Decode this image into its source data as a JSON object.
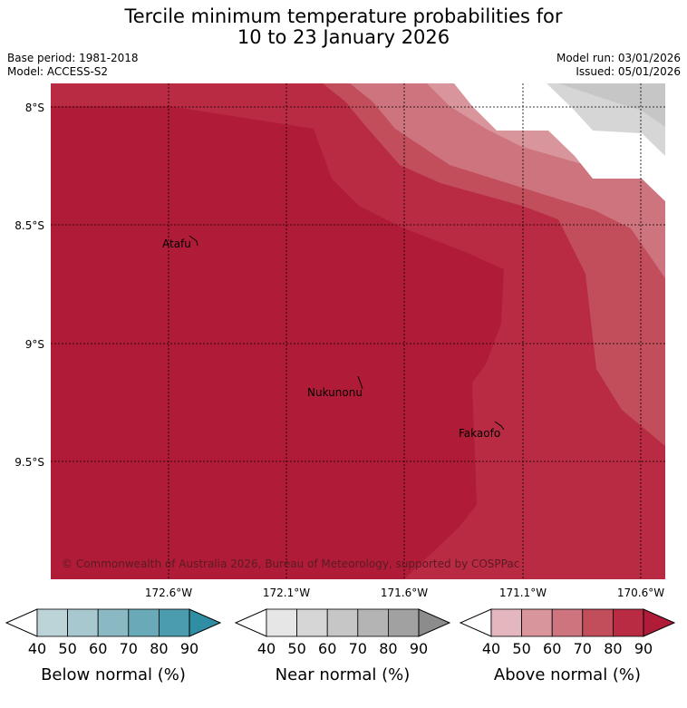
{
  "title": {
    "line1": "Tercile minimum temperature probabilities for",
    "line2": "10 to 23 January 2026"
  },
  "meta": {
    "base_period": "Base period: 1981-2018",
    "model": "Model: ACCESS-S2",
    "model_run": "Model run: 03/01/2026",
    "issued": "Issued: 05/01/2026"
  },
  "map": {
    "lat_labels": [
      "8°S",
      "8.5°S",
      "9°S",
      "9.5°S"
    ],
    "lon_labels": [
      "172.6°W",
      "172.1°W",
      "171.6°W",
      "171.1°W",
      "170.6°W"
    ],
    "places": [
      {
        "name": "Atafu"
      },
      {
        "name": "Nukunonu"
      },
      {
        "name": "Fakaofo"
      }
    ],
    "copyright": "© Commonwealth of Australia 2026, Bureau of Meteorology, supported by COSPPac"
  },
  "legend": [
    {
      "label": "Below normal (%)",
      "ticks": [
        "40",
        "50",
        "60",
        "70",
        "80",
        "90"
      ],
      "colors": [
        "#bcd3d8",
        "#a7c8ce",
        "#8ab9c3",
        "#6aa9b8",
        "#4b9cad",
        "#2f8ea3"
      ]
    },
    {
      "label": "Near normal (%)",
      "ticks": [
        "40",
        "50",
        "60",
        "70",
        "80",
        "90"
      ],
      "colors": [
        "#e6e6e6",
        "#d6d6d6",
        "#c6c6c6",
        "#b4b4b4",
        "#a1a1a1",
        "#8c8c8c"
      ]
    },
    {
      "label": "Above normal (%)",
      "ticks": [
        "40",
        "50",
        "60",
        "70",
        "80",
        "90"
      ],
      "colors": [
        "#e3b7bd",
        "#d8969c",
        "#cd747e",
        "#c34e5b",
        "#b92b43",
        "#b01c38"
      ]
    }
  ]
}
